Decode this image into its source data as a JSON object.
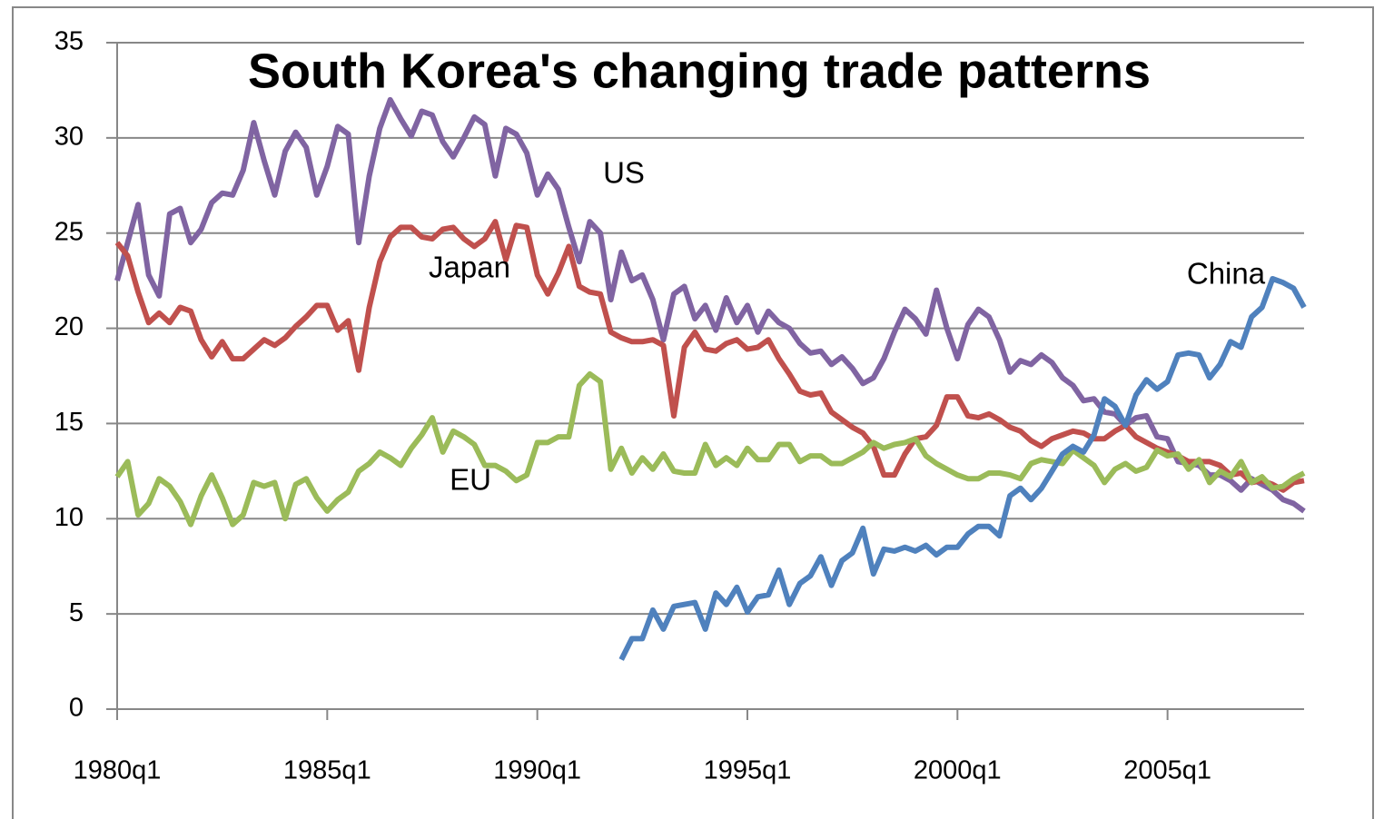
{
  "chart_data": {
    "type": "line",
    "title": "South Korea's changing trade patterns",
    "categories": [
      "1980q1",
      null,
      null,
      null,
      null,
      null,
      null,
      null,
      null,
      null,
      null,
      null,
      null,
      null,
      null,
      null,
      null,
      null,
      null,
      null,
      "1985q1",
      null,
      null,
      null,
      null,
      null,
      null,
      null,
      null,
      null,
      null,
      null,
      null,
      null,
      null,
      null,
      null,
      null,
      null,
      null,
      "1990q1",
      null,
      null,
      null,
      null,
      null,
      null,
      null,
      null,
      null,
      null,
      null,
      null,
      null,
      null,
      null,
      null,
      null,
      null,
      null,
      "1995q1",
      null,
      null,
      null,
      null,
      null,
      null,
      null,
      null,
      null,
      null,
      null,
      null,
      null,
      null,
      null,
      null,
      null,
      null,
      null,
      "2000q1",
      null,
      null,
      null,
      null,
      null,
      null,
      null,
      null,
      null,
      null,
      null,
      null,
      null,
      null,
      null,
      null,
      null,
      null,
      null,
      "2005q1",
      null,
      null,
      null,
      null,
      null,
      null,
      null,
      null,
      null,
      null,
      null,
      null,
      null
    ],
    "series": [
      {
        "name": "US",
        "color": "#8064a2",
        "values": [
          22.5,
          24.5,
          26.5,
          22.8,
          21.7,
          26.0,
          26.3,
          24.5,
          25.2,
          26.6,
          27.1,
          27.0,
          28.3,
          30.8,
          28.8,
          27.0,
          29.3,
          30.3,
          29.5,
          27.0,
          28.5,
          30.6,
          30.2,
          24.5,
          28.0,
          30.5,
          32.0,
          31.0,
          30.1,
          31.4,
          31.2,
          29.8,
          29.0,
          30.0,
          31.1,
          30.7,
          28.0,
          30.5,
          30.2,
          29.2,
          27.0,
          28.1,
          27.3,
          25.3,
          23.5,
          25.6,
          25.0,
          21.5,
          24.0,
          22.5,
          22.8,
          21.5,
          19.4,
          21.8,
          22.2,
          20.5,
          21.2,
          19.9,
          21.6,
          20.3,
          21.2,
          19.8,
          20.9,
          20.3,
          20.0,
          19.2,
          18.7,
          18.8,
          18.1,
          18.5,
          17.9,
          17.1,
          17.4,
          18.4,
          19.8,
          21.0,
          20.5,
          19.7,
          22.0,
          20.0,
          18.4,
          20.2,
          21.0,
          20.6,
          19.4,
          17.7,
          18.3,
          18.1,
          18.6,
          18.2,
          17.4,
          17.0,
          16.2,
          16.3,
          15.6,
          15.5,
          14.9,
          15.3,
          15.4,
          14.3,
          14.2,
          13.0,
          12.9,
          12.8,
          12.3,
          12.3,
          12.0,
          11.5,
          12.1,
          11.8,
          11.5,
          11.0,
          10.8,
          10.4
        ]
      },
      {
        "name": "Japan",
        "color": "#c0504d",
        "values": [
          24.5,
          23.8,
          21.9,
          20.3,
          20.8,
          20.3,
          21.1,
          20.9,
          19.4,
          18.5,
          19.3,
          18.4,
          18.4,
          18.9,
          19.4,
          19.1,
          19.5,
          20.1,
          20.6,
          21.2,
          21.2,
          19.9,
          20.4,
          17.8,
          21.1,
          23.5,
          24.8,
          25.3,
          25.3,
          24.8,
          24.7,
          25.2,
          25.3,
          24.7,
          24.3,
          24.7,
          25.6,
          23.6,
          25.4,
          25.3,
          22.8,
          21.8,
          22.9,
          24.3,
          22.2,
          21.9,
          21.8,
          19.8,
          19.5,
          19.3,
          19.3,
          19.4,
          19.1,
          15.4,
          19.0,
          19.8,
          18.9,
          18.8,
          19.2,
          19.4,
          18.9,
          19.0,
          19.4,
          18.4,
          17.6,
          16.7,
          16.5,
          16.6,
          15.6,
          15.2,
          14.8,
          14.5,
          13.8,
          12.3,
          12.3,
          13.4,
          14.2,
          14.3,
          14.9,
          16.4,
          16.4,
          15.4,
          15.3,
          15.5,
          15.2,
          14.8,
          14.6,
          14.1,
          13.8,
          14.2,
          14.4,
          14.6,
          14.5,
          14.2,
          14.2,
          14.6,
          14.9,
          14.3,
          14.0,
          13.7,
          13.5,
          13.3,
          13.0,
          13.0,
          13.0,
          12.8,
          12.3,
          12.4,
          11.9,
          12.0,
          11.8,
          11.5,
          11.9,
          12.0
        ]
      },
      {
        "name": "EU",
        "color": "#9bbb59",
        "values": [
          12.2,
          13.0,
          10.2,
          10.8,
          12.1,
          11.7,
          10.9,
          9.7,
          11.2,
          12.3,
          11.1,
          9.7,
          10.2,
          11.9,
          11.7,
          11.9,
          10.0,
          11.8,
          12.1,
          11.1,
          10.4,
          11.0,
          11.4,
          12.5,
          12.9,
          13.5,
          13.2,
          12.8,
          13.7,
          14.4,
          15.3,
          13.5,
          14.6,
          14.3,
          13.9,
          12.8,
          12.8,
          12.5,
          12.0,
          12.3,
          14.0,
          14.0,
          14.3,
          14.3,
          17.0,
          17.6,
          17.2,
          12.6,
          13.7,
          12.4,
          13.2,
          12.6,
          13.4,
          12.5,
          12.4,
          12.4,
          13.9,
          12.8,
          13.2,
          12.8,
          13.7,
          13.1,
          13.1,
          13.9,
          13.9,
          13.0,
          13.3,
          13.3,
          12.9,
          12.9,
          13.2,
          13.5,
          14.0,
          13.7,
          13.9,
          14.0,
          14.2,
          13.3,
          12.9,
          12.6,
          12.3,
          12.1,
          12.1,
          12.4,
          12.4,
          12.3,
          12.1,
          12.9,
          13.1,
          13.0,
          12.9,
          13.6,
          13.2,
          12.8,
          11.9,
          12.6,
          12.9,
          12.5,
          12.7,
          13.6,
          13.3,
          13.4,
          12.6,
          13.1,
          11.9,
          12.5,
          12.2,
          13.0,
          11.9,
          12.2,
          11.6,
          11.7,
          12.1,
          12.4
        ]
      },
      {
        "name": "China",
        "color": "#4f81bd",
        "values": [
          null,
          null,
          null,
          null,
          null,
          null,
          null,
          null,
          null,
          null,
          null,
          null,
          null,
          null,
          null,
          null,
          null,
          null,
          null,
          null,
          null,
          null,
          null,
          null,
          null,
          null,
          null,
          null,
          null,
          null,
          null,
          null,
          null,
          null,
          null,
          null,
          null,
          null,
          null,
          null,
          null,
          null,
          null,
          null,
          null,
          null,
          null,
          null,
          2.6,
          3.7,
          3.7,
          5.2,
          4.2,
          5.4,
          5.5,
          5.6,
          4.2,
          6.1,
          5.5,
          6.4,
          5.1,
          5.9,
          6.0,
          7.3,
          5.5,
          6.6,
          7.0,
          8.0,
          6.5,
          7.8,
          8.2,
          9.5,
          7.1,
          8.4,
          8.3,
          8.5,
          8.3,
          8.6,
          8.1,
          8.5,
          8.5,
          9.2,
          9.6,
          9.6,
          9.1,
          11.2,
          11.6,
          11.0,
          11.6,
          12.5,
          13.4,
          13.8,
          13.5,
          14.4,
          16.3,
          15.9,
          14.9,
          16.5,
          17.3,
          16.8,
          17.2,
          18.6,
          18.7,
          18.6,
          17.4,
          18.1,
          19.3,
          19.0,
          20.6,
          21.1,
          22.6,
          22.4,
          22.1,
          21.1
        ]
      }
    ],
    "ylim": [
      0,
      35
    ],
    "yticks": [
      0,
      5,
      10,
      15,
      20,
      25,
      30,
      35
    ],
    "grid": true
  }
}
